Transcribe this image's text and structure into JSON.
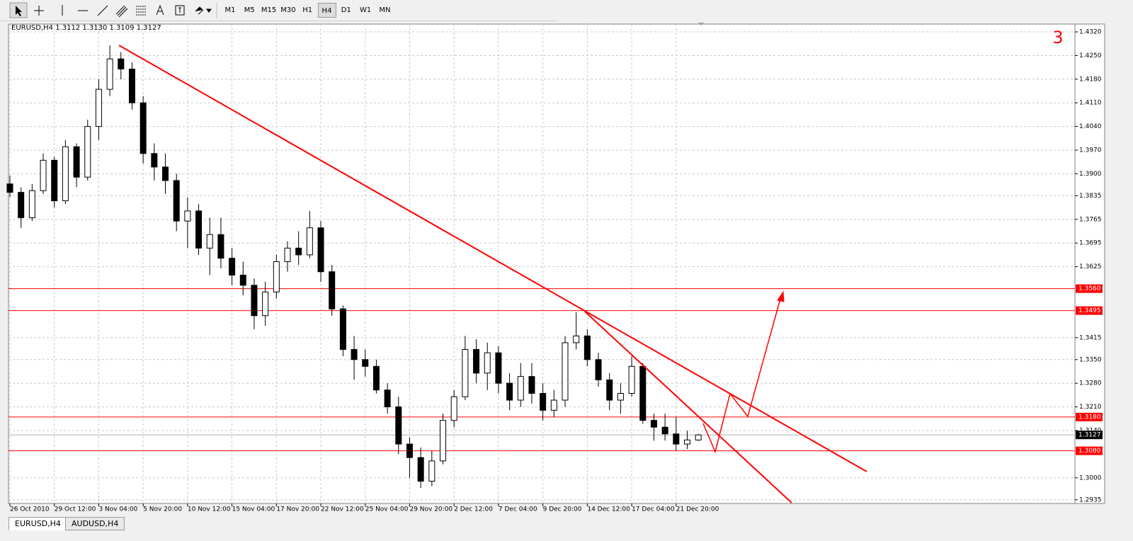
{
  "toolbar": {
    "timeframes": [
      "M1",
      "M5",
      "M15",
      "M30",
      "H1",
      "H4",
      "D1",
      "W1",
      "MN"
    ]
  },
  "tabs": [
    "EURUSD,H4",
    "AUDUSD,H4"
  ],
  "chart_data": {
    "type": "candlestick",
    "title": "EURUSD,H4  1.3112 1.3130 1.3109 1.3127",
    "annotation": "3",
    "categories": [
      "26 Oct 2010",
      null,
      null,
      null,
      "29 Oct 12:00",
      null,
      null,
      null,
      "3 Nov 04:00",
      null,
      null,
      null,
      "5 Nov 20:00",
      null,
      null,
      null,
      "10 Nov 12:00",
      null,
      null,
      null,
      "15 Nov 04:00",
      null,
      null,
      null,
      "17 Nov 20:00",
      null,
      null,
      null,
      "22 Nov 12:00",
      null,
      null,
      null,
      "25 Nov 04:00",
      null,
      null,
      null,
      "29 Nov 20:00",
      null,
      null,
      null,
      "2 Dec 12:00",
      null,
      null,
      null,
      "7 Dec 04:00",
      null,
      null,
      null,
      "9 Dec 20:00",
      null,
      null,
      null,
      "14 Dec 12:00",
      null,
      null,
      null,
      "17 Dec 04:00",
      null,
      null,
      null,
      "21 Dec 20:00",
      null,
      null
    ],
    "open": [
      1.387,
      1.3845,
      1.377,
      1.385,
      1.394,
      1.382,
      1.398,
      1.389,
      1.404,
      1.415,
      1.424,
      1.421,
      1.411,
      1.396,
      1.392,
      1.388,
      1.376,
      1.379,
      1.368,
      1.372,
      1.365,
      1.36,
      1.357,
      1.348,
      1.355,
      1.364,
      1.368,
      1.366,
      1.374,
      1.361,
      1.35,
      1.338,
      1.335,
      1.333,
      1.326,
      1.321,
      1.31,
      1.306,
      1.299,
      1.305,
      1.317,
      1.324,
      1.338,
      1.331,
      1.337,
      1.328,
      1.323,
      1.33,
      1.325,
      1.32,
      1.323,
      1.34,
      1.342,
      1.335,
      1.329,
      1.323,
      1.325,
      1.333,
      1.317,
      1.315,
      1.313,
      1.31,
      1.3112
    ],
    "high": [
      1.3895,
      1.386,
      1.387,
      1.396,
      1.395,
      1.4,
      1.399,
      1.406,
      1.418,
      1.428,
      1.426,
      1.423,
      1.413,
      1.399,
      1.396,
      1.39,
      1.383,
      1.381,
      1.377,
      1.377,
      1.368,
      1.364,
      1.359,
      1.358,
      1.366,
      1.37,
      1.373,
      1.379,
      1.376,
      1.363,
      1.351,
      1.342,
      1.338,
      1.335,
      1.328,
      1.324,
      1.312,
      1.309,
      1.308,
      1.319,
      1.326,
      1.342,
      1.341,
      1.34,
      1.339,
      1.331,
      1.334,
      1.334,
      1.328,
      1.326,
      1.342,
      1.349,
      1.344,
      1.337,
      1.331,
      1.328,
      1.336,
      1.334,
      1.319,
      1.319,
      1.318,
      1.314,
      1.313
    ],
    "low": [
      1.383,
      1.374,
      1.376,
      1.384,
      1.38,
      1.381,
      1.386,
      1.388,
      1.4,
      1.413,
      1.418,
      1.409,
      1.393,
      1.388,
      1.384,
      1.373,
      1.368,
      1.366,
      1.36,
      1.362,
      1.357,
      1.354,
      1.344,
      1.345,
      1.353,
      1.361,
      1.363,
      1.365,
      1.358,
      1.348,
      1.336,
      1.329,
      1.33,
      1.325,
      1.319,
      1.307,
      1.3,
      1.297,
      1.2975,
      1.304,
      1.315,
      1.323,
      1.328,
      1.326,
      1.325,
      1.32,
      1.321,
      1.322,
      1.317,
      1.318,
      1.321,
      1.338,
      1.333,
      1.327,
      1.32,
      1.319,
      1.324,
      1.316,
      1.311,
      1.311,
      1.308,
      1.3085,
      1.3109
    ],
    "close": [
      1.3845,
      1.377,
      1.385,
      1.394,
      1.382,
      1.398,
      1.389,
      1.404,
      1.415,
      1.424,
      1.421,
      1.411,
      1.396,
      1.392,
      1.388,
      1.376,
      1.379,
      1.368,
      1.372,
      1.365,
      1.36,
      1.357,
      1.348,
      1.355,
      1.364,
      1.368,
      1.366,
      1.374,
      1.361,
      1.35,
      1.338,
      1.335,
      1.333,
      1.326,
      1.321,
      1.31,
      1.306,
      1.299,
      1.305,
      1.317,
      1.324,
      1.338,
      1.331,
      1.337,
      1.328,
      1.323,
      1.33,
      1.325,
      1.32,
      1.323,
      1.34,
      1.342,
      1.335,
      1.329,
      1.323,
      1.325,
      1.333,
      1.317,
      1.315,
      1.313,
      1.31,
      1.3112,
      1.3127
    ],
    "ylim": [
      1.2922,
      1.4341
    ],
    "yticks": [
      {
        "value": 1.432,
        "label": "1.4320"
      },
      {
        "value": 1.425,
        "label": "1.4250"
      },
      {
        "value": 1.418,
        "label": "1.4180"
      },
      {
        "value": 1.411,
        "label": "1.4110"
      },
      {
        "value": 1.404,
        "label": "1.4040"
      },
      {
        "value": 1.397,
        "label": "1.3970"
      },
      {
        "value": 1.39,
        "label": "1.3900"
      },
      {
        "value": 1.3835,
        "label": "1.3835"
      },
      {
        "value": 1.3765,
        "label": "1.3765"
      },
      {
        "value": 1.3695,
        "label": "1.3695"
      },
      {
        "value": 1.3625,
        "label": "1.3625"
      },
      {
        "value": 1.3415,
        "label": "1.3415"
      },
      {
        "value": 1.335,
        "label": "1.3350"
      },
      {
        "value": 1.328,
        "label": "1.3280"
      },
      {
        "value": 1.321,
        "label": "1.3210"
      },
      {
        "value": 1.314,
        "label": "1.3140"
      },
      {
        "value": 1.3,
        "label": "1.3000"
      },
      {
        "value": 1.2935,
        "label": "1.2935"
      }
    ],
    "levels": [
      {
        "value": 1.356,
        "label": "1.3560"
      },
      {
        "value": 1.3495,
        "label": "1.3495"
      },
      {
        "value": 1.318,
        "label": "1.3180"
      },
      {
        "value": 1.308,
        "label": "1.3080"
      }
    ],
    "bid": {
      "value": 1.3127,
      "label": "1.3127"
    },
    "grid": true,
    "level_color": "#ff0000",
    "annotation_color": "#ff0000"
  }
}
